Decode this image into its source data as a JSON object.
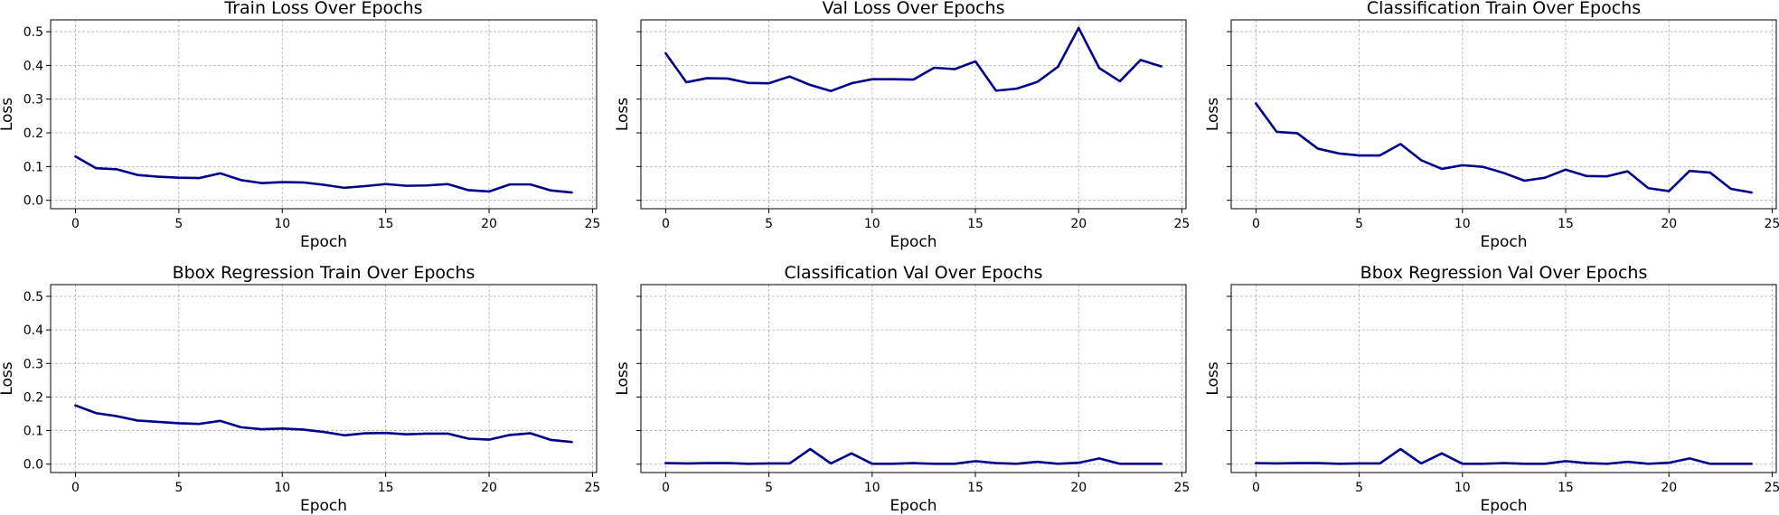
{
  "colors": {
    "series": "#00008b",
    "grid": "#b0b0b0"
  },
  "chart_data": [
    {
      "type": "line",
      "title": "Train Loss Over Epochs",
      "xlabel": "Epoch",
      "ylabel": "Loss",
      "xlim": [
        -1.2,
        25.2
      ],
      "ylim": [
        -0.025,
        0.535
      ],
      "xticks": [
        0,
        5,
        10,
        15,
        20,
        25
      ],
      "yticks": [
        0.0,
        0.1,
        0.2,
        0.3,
        0.4,
        0.5
      ],
      "ytick_labels_shown": true,
      "grid": true,
      "x": [
        0,
        1,
        2,
        3,
        4,
        5,
        6,
        7,
        8,
        9,
        10,
        11,
        12,
        13,
        14,
        15,
        16,
        17,
        18,
        19,
        20,
        21,
        22,
        23,
        24
      ],
      "series": [
        {
          "values": [
            0.13,
            0.095,
            0.092,
            0.075,
            0.07,
            0.067,
            0.066,
            0.08,
            0.06,
            0.051,
            0.054,
            0.053,
            0.046,
            0.037,
            0.042,
            0.048,
            0.043,
            0.044,
            0.048,
            0.03,
            0.026,
            0.047,
            0.047,
            0.029,
            0.023
          ]
        }
      ]
    },
    {
      "type": "line",
      "title": "Val Loss Over Epochs",
      "xlabel": "Epoch",
      "ylabel": "Loss",
      "xlim": [
        -1.2,
        25.2
      ],
      "ylim": [
        -0.025,
        0.535
      ],
      "xticks": [
        0,
        5,
        10,
        15,
        20,
        25
      ],
      "yticks": [
        0.0,
        0.1,
        0.2,
        0.3,
        0.4,
        0.5
      ],
      "ytick_labels_shown": false,
      "grid": true,
      "x": [
        0,
        1,
        2,
        3,
        4,
        5,
        6,
        7,
        8,
        9,
        10,
        11,
        12,
        13,
        14,
        15,
        16,
        17,
        18,
        19,
        20,
        21,
        22,
        23,
        24
      ],
      "series": [
        {
          "values": [
            0.436,
            0.35,
            0.362,
            0.361,
            0.348,
            0.347,
            0.367,
            0.342,
            0.324,
            0.347,
            0.359,
            0.359,
            0.358,
            0.393,
            0.389,
            0.412,
            0.325,
            0.331,
            0.351,
            0.396,
            0.511,
            0.392,
            0.353,
            0.416,
            0.397
          ]
        }
      ]
    },
    {
      "type": "line",
      "title": "Classification Train Over Epochs",
      "xlabel": "Epoch",
      "ylabel": "Loss",
      "xlim": [
        -1.2,
        25.2
      ],
      "ylim": [
        -0.025,
        0.535
      ],
      "xticks": [
        0,
        5,
        10,
        15,
        20,
        25
      ],
      "yticks": [
        0.0,
        0.1,
        0.2,
        0.3,
        0.4,
        0.5
      ],
      "ytick_labels_shown": false,
      "grid": true,
      "x": [
        0,
        1,
        2,
        3,
        4,
        5,
        6,
        7,
        8,
        9,
        10,
        11,
        12,
        13,
        14,
        15,
        16,
        17,
        18,
        19,
        20,
        21,
        22,
        23,
        24
      ],
      "series": [
        {
          "values": [
            0.287,
            0.203,
            0.199,
            0.153,
            0.139,
            0.133,
            0.133,
            0.167,
            0.119,
            0.093,
            0.104,
            0.099,
            0.081,
            0.058,
            0.067,
            0.091,
            0.072,
            0.071,
            0.086,
            0.036,
            0.027,
            0.087,
            0.082,
            0.034,
            0.023
          ]
        }
      ]
    },
    {
      "type": "line",
      "title": "Bbox Regression Train Over Epochs",
      "xlabel": "Epoch",
      "ylabel": "Loss",
      "xlim": [
        -1.2,
        25.2
      ],
      "ylim": [
        -0.025,
        0.535
      ],
      "xticks": [
        0,
        5,
        10,
        15,
        20,
        25
      ],
      "yticks": [
        0.0,
        0.1,
        0.2,
        0.3,
        0.4,
        0.5
      ],
      "ytick_labels_shown": true,
      "grid": true,
      "x": [
        0,
        1,
        2,
        3,
        4,
        5,
        6,
        7,
        8,
        9,
        10,
        11,
        12,
        13,
        14,
        15,
        16,
        17,
        18,
        19,
        20,
        21,
        22,
        23,
        24
      ],
      "series": [
        {
          "values": [
            0.175,
            0.152,
            0.143,
            0.13,
            0.126,
            0.122,
            0.12,
            0.129,
            0.11,
            0.104,
            0.106,
            0.103,
            0.096,
            0.086,
            0.092,
            0.093,
            0.089,
            0.091,
            0.091,
            0.076,
            0.073,
            0.087,
            0.092,
            0.072,
            0.066
          ]
        }
      ]
    },
    {
      "type": "line",
      "title": "Classification Val Over Epochs",
      "xlabel": "Epoch",
      "ylabel": "Loss",
      "xlim": [
        -1.2,
        25.2
      ],
      "ylim": [
        -0.025,
        0.535
      ],
      "xticks": [
        0,
        5,
        10,
        15,
        20,
        25
      ],
      "yticks": [
        0.0,
        0.1,
        0.2,
        0.3,
        0.4,
        0.5
      ],
      "ytick_labels_shown": false,
      "grid": true,
      "x": [
        0,
        1,
        2,
        3,
        4,
        5,
        6,
        7,
        8,
        9,
        10,
        11,
        12,
        13,
        14,
        15,
        16,
        17,
        18,
        19,
        20,
        21,
        22,
        23,
        24
      ],
      "series": [
        {
          "values": [
            0.003,
            0.002,
            0.003,
            0.003,
            0.001,
            0.002,
            0.002,
            0.045,
            0.002,
            0.032,
            0.001,
            0.001,
            0.003,
            0.001,
            0.001,
            0.009,
            0.003,
            0.001,
            0.007,
            0.001,
            0.004,
            0.017,
            0.001,
            0.001,
            0.001
          ]
        }
      ]
    },
    {
      "type": "line",
      "title": "Bbox Regression Val Over Epochs",
      "xlabel": "Epoch",
      "ylabel": "Loss",
      "xlim": [
        -1.2,
        25.2
      ],
      "ylim": [
        -0.025,
        0.535
      ],
      "xticks": [
        0,
        5,
        10,
        15,
        20,
        25
      ],
      "yticks": [
        0.0,
        0.1,
        0.2,
        0.3,
        0.4,
        0.5
      ],
      "ytick_labels_shown": false,
      "grid": true,
      "x": [
        0,
        1,
        2,
        3,
        4,
        5,
        6,
        7,
        8,
        9,
        10,
        11,
        12,
        13,
        14,
        15,
        16,
        17,
        18,
        19,
        20,
        21,
        22,
        23,
        24
      ],
      "series": [
        {
          "values": [
            0.003,
            0.002,
            0.003,
            0.003,
            0.001,
            0.002,
            0.002,
            0.045,
            0.002,
            0.032,
            0.001,
            0.001,
            0.003,
            0.001,
            0.001,
            0.009,
            0.003,
            0.001,
            0.007,
            0.001,
            0.004,
            0.017,
            0.001,
            0.001,
            0.001
          ]
        }
      ]
    }
  ]
}
